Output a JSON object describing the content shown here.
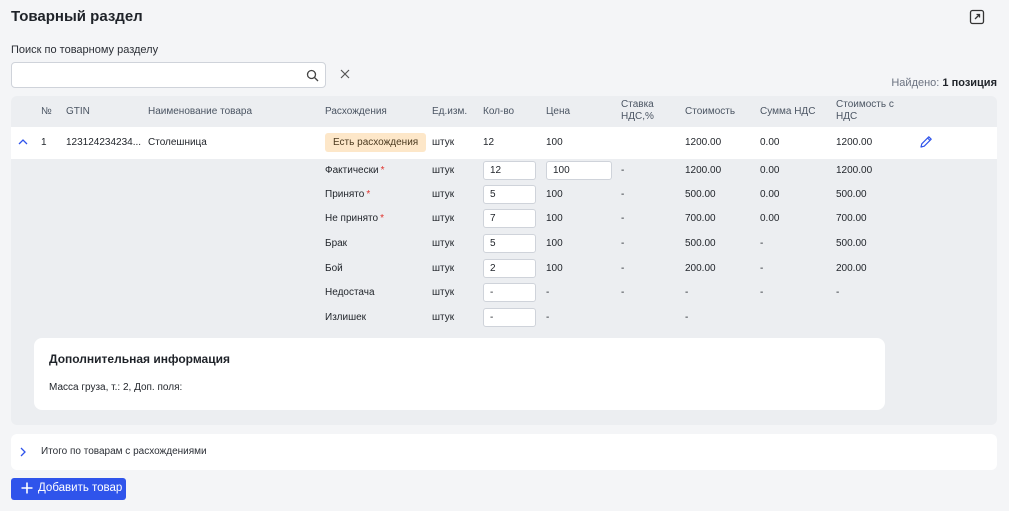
{
  "header": {
    "title": "Товарный раздел",
    "expand_icon": "expand-icon"
  },
  "search": {
    "label": "Поиск по товарному разделу",
    "value": "",
    "placeholder": ""
  },
  "found": {
    "prefix": "Найдено:",
    "count": "1 позиция"
  },
  "table": {
    "columns": {
      "no": "№",
      "gtin": "GTIN",
      "name": "Наименование товара",
      "discrepancy": "Расхождения",
      "unit": "Ед.изм.",
      "qty": "Кол-во",
      "price": "Цена",
      "vat_rate": "Ставка НДС,%",
      "cost": "Стоимость",
      "vat_sum": "Сумма НДС",
      "cost_vat": "Стоимость с НДС"
    },
    "item": {
      "no": "1",
      "gtin": "123124234234...",
      "name": "Столешница",
      "badge": "Есть расхождения",
      "unit": "штук",
      "qty": "12",
      "price": "100",
      "cost": "1200.00",
      "vat_sum": "0.00",
      "cost_vat": "1200.00"
    },
    "sub_rows": [
      {
        "label": "Фактически",
        "required": "*",
        "unit": "штук",
        "qty": "12",
        "price": "100",
        "vat_rate": "-",
        "cost": "1200.00",
        "vat_sum": "0.00",
        "cost_vat": "1200.00"
      },
      {
        "label": "Принято",
        "required": "*",
        "unit": "штук",
        "qty": "5",
        "price": "100",
        "vat_rate": "-",
        "cost": "500.00",
        "vat_sum": "0.00",
        "cost_vat": "500.00"
      },
      {
        "label": "Не принято",
        "required": "*",
        "unit": "штук",
        "qty": "7",
        "price": "100",
        "vat_rate": "-",
        "cost": "700.00",
        "vat_sum": "0.00",
        "cost_vat": "700.00"
      },
      {
        "label": "Брак",
        "required": "",
        "unit": "штук",
        "qty": "5",
        "price": "100",
        "vat_rate": "-",
        "cost": "500.00",
        "vat_sum": "-",
        "cost_vat": "500.00"
      },
      {
        "label": "Бой",
        "required": "",
        "unit": "штук",
        "qty": "2",
        "price": "100",
        "vat_rate": "-",
        "cost": "200.00",
        "vat_sum": "-",
        "cost_vat": "200.00"
      },
      {
        "label": "Недостача",
        "required": "",
        "unit": "штук",
        "qty": "-",
        "price": "-",
        "vat_rate": "-",
        "cost": "-",
        "vat_sum": "-",
        "cost_vat": "-"
      },
      {
        "label": "Излишек",
        "required": "",
        "unit": "штук",
        "qty": "-",
        "price": "-",
        "vat_rate": "",
        "cost": "-",
        "vat_sum": "",
        "cost_vat": ""
      }
    ]
  },
  "additional_info": {
    "title": "Дополнительная информация",
    "text": "Масса груза, т.: 2, Доп. поля:"
  },
  "totals": {
    "label": "Итого по товарам с расхождениями"
  },
  "add_button": {
    "label": "Добавить товар"
  },
  "colors": {
    "accent": "#2f54eb",
    "badge_bg": "#fde7c9",
    "required": "#e0322c"
  }
}
